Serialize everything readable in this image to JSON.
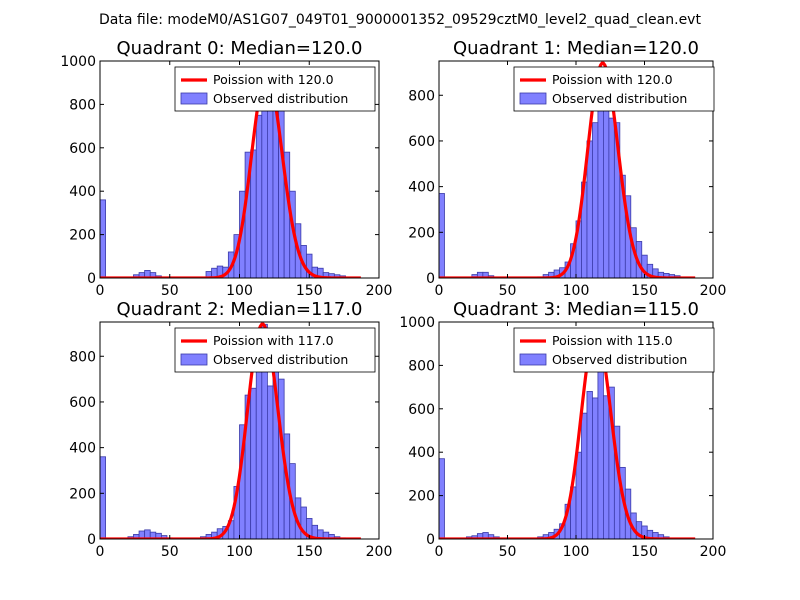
{
  "suptitle": "Data file: modeM0/AS1G07_049T01_9000001352_09529cztM0_level2_quad_clean.evt",
  "colors": {
    "bar_fill": "#8080ff",
    "bar_stroke": "#3a3aa8",
    "poisson": "#ff0000",
    "axes": "#000000"
  },
  "chart_data": [
    {
      "type": "bar",
      "title": "Quadrant 0: Median=120.0",
      "xlim": [
        0,
        200
      ],
      "ylim": [
        0,
        1000
      ],
      "xticks": [
        0,
        50,
        100,
        150,
        200
      ],
      "yticks": [
        0,
        200,
        400,
        600,
        800,
        1000
      ],
      "bin_width": 4,
      "bins": [
        [
          0,
          360
        ],
        [
          24,
          15
        ],
        [
          28,
          25
        ],
        [
          32,
          35
        ],
        [
          36,
          25
        ],
        [
          40,
          10
        ],
        [
          76,
          30
        ],
        [
          80,
          45
        ],
        [
          84,
          55
        ],
        [
          88,
          50
        ],
        [
          92,
          120
        ],
        [
          96,
          200
        ],
        [
          100,
          400
        ],
        [
          104,
          580
        ],
        [
          108,
          590
        ],
        [
          112,
          750
        ],
        [
          116,
          850
        ],
        [
          120,
          930
        ],
        [
          124,
          800
        ],
        [
          128,
          780
        ],
        [
          132,
          580
        ],
        [
          136,
          400
        ],
        [
          140,
          250
        ],
        [
          144,
          150
        ],
        [
          148,
          110
        ],
        [
          152,
          50
        ],
        [
          156,
          45
        ],
        [
          160,
          25
        ],
        [
          164,
          20
        ],
        [
          168,
          15
        ],
        [
          172,
          10
        ]
      ],
      "poisson_mean": 120.0,
      "poisson_peak": 940,
      "legend": {
        "line_label": "Poission with 120.0",
        "bar_label": "Observed distribution",
        "placement": "top-right"
      }
    },
    {
      "type": "bar",
      "title": "Quadrant 1: Median=120.0",
      "xlim": [
        0,
        200
      ],
      "ylim": [
        0,
        950
      ],
      "xticks": [
        0,
        50,
        100,
        150,
        200
      ],
      "yticks": [
        0,
        200,
        400,
        600,
        800
      ],
      "bin_width": 4,
      "bins": [
        [
          0,
          370
        ],
        [
          24,
          15
        ],
        [
          28,
          25
        ],
        [
          32,
          25
        ],
        [
          36,
          10
        ],
        [
          72,
          5
        ],
        [
          76,
          15
        ],
        [
          80,
          25
        ],
        [
          84,
          35
        ],
        [
          88,
          45
        ],
        [
          92,
          70
        ],
        [
          96,
          150
        ],
        [
          100,
          250
        ],
        [
          104,
          420
        ],
        [
          108,
          600
        ],
        [
          112,
          680
        ],
        [
          116,
          840
        ],
        [
          120,
          820
        ],
        [
          124,
          700
        ],
        [
          128,
          680
        ],
        [
          132,
          450
        ],
        [
          136,
          360
        ],
        [
          140,
          220
        ],
        [
          144,
          160
        ],
        [
          148,
          100
        ],
        [
          152,
          60
        ],
        [
          156,
          40
        ],
        [
          160,
          25
        ],
        [
          164,
          20
        ],
        [
          168,
          15
        ],
        [
          172,
          10
        ]
      ],
      "poisson_mean": 120.0,
      "poisson_peak": 940,
      "legend": {
        "line_label": "Poission with 120.0",
        "bar_label": "Observed distribution",
        "placement": "top-right"
      }
    },
    {
      "type": "bar",
      "title": "Quadrant 2: Median=117.0",
      "xlim": [
        0,
        200
      ],
      "ylim": [
        0,
        950
      ],
      "xticks": [
        0,
        50,
        100,
        150,
        200
      ],
      "yticks": [
        0,
        200,
        400,
        600,
        800
      ],
      "bin_width": 4,
      "bins": [
        [
          0,
          360
        ],
        [
          20,
          10
        ],
        [
          24,
          20
        ],
        [
          28,
          35
        ],
        [
          32,
          40
        ],
        [
          36,
          30
        ],
        [
          40,
          25
        ],
        [
          44,
          15
        ],
        [
          48,
          5
        ],
        [
          72,
          10
        ],
        [
          76,
          20
        ],
        [
          80,
          30
        ],
        [
          84,
          45
        ],
        [
          88,
          55
        ],
        [
          92,
          80
        ],
        [
          96,
          230
        ],
        [
          100,
          500
        ],
        [
          104,
          630
        ],
        [
          108,
          660
        ],
        [
          112,
          850
        ],
        [
          116,
          940
        ],
        [
          120,
          670
        ],
        [
          124,
          820
        ],
        [
          128,
          700
        ],
        [
          132,
          460
        ],
        [
          136,
          330
        ],
        [
          140,
          180
        ],
        [
          144,
          140
        ],
        [
          148,
          90
        ],
        [
          152,
          60
        ],
        [
          156,
          40
        ],
        [
          160,
          30
        ],
        [
          164,
          20
        ],
        [
          168,
          10
        ],
        [
          172,
          5
        ]
      ],
      "poisson_mean": 117.0,
      "poisson_peak": 940,
      "legend": {
        "line_label": "Poission with 117.0",
        "bar_label": "Observed distribution",
        "placement": "top-right"
      }
    },
    {
      "type": "bar",
      "title": "Quadrant 3: Median=115.0",
      "xlim": [
        0,
        200
      ],
      "ylim": [
        0,
        1000
      ],
      "xticks": [
        0,
        50,
        100,
        150,
        200
      ],
      "yticks": [
        0,
        200,
        400,
        600,
        800,
        1000
      ],
      "bin_width": 4,
      "bins": [
        [
          0,
          370
        ],
        [
          20,
          10
        ],
        [
          24,
          15
        ],
        [
          28,
          25
        ],
        [
          32,
          30
        ],
        [
          36,
          20
        ],
        [
          40,
          10
        ],
        [
          68,
          5
        ],
        [
          72,
          10
        ],
        [
          76,
          20
        ],
        [
          80,
          30
        ],
        [
          84,
          45
        ],
        [
          88,
          70
        ],
        [
          92,
          160
        ],
        [
          96,
          240
        ],
        [
          100,
          400
        ],
        [
          104,
          580
        ],
        [
          108,
          680
        ],
        [
          112,
          650
        ],
        [
          116,
          930
        ],
        [
          120,
          660
        ],
        [
          124,
          700
        ],
        [
          128,
          520
        ],
        [
          132,
          330
        ],
        [
          136,
          230
        ],
        [
          140,
          120
        ],
        [
          144,
          80
        ],
        [
          148,
          60
        ],
        [
          152,
          40
        ],
        [
          156,
          30
        ],
        [
          160,
          20
        ],
        [
          164,
          10
        ],
        [
          168,
          5
        ]
      ],
      "poisson_mean": 115.0,
      "poisson_peak": 960,
      "legend": {
        "line_label": "Poission with 115.0",
        "bar_label": "Observed distribution",
        "placement": "top-right"
      }
    }
  ]
}
